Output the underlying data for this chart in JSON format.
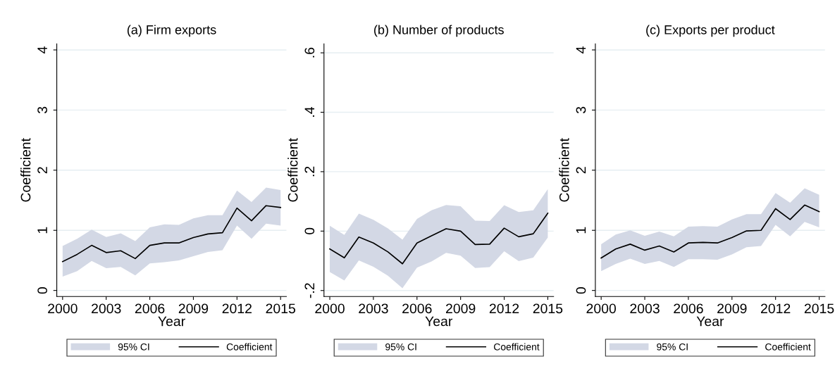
{
  "chart_data": [
    {
      "type": "line",
      "title": "(a) Firm exports",
      "xlabel": "Year",
      "ylabel": "Coefficient",
      "annotations": [
        "95% CI"
      ],
      "x": [
        2000,
        2001,
        2002,
        2003,
        2004,
        2005,
        2006,
        2007,
        2008,
        2009,
        2010,
        2011,
        2012,
        2013,
        2014,
        2015
      ],
      "series": [
        {
          "name": "Coefficient",
          "type": "line",
          "color": "#000000",
          "values": [
            0.48,
            0.6,
            0.75,
            0.63,
            0.66,
            0.53,
            0.75,
            0.79,
            0.79,
            0.88,
            0.94,
            0.96,
            1.37,
            1.16,
            1.41,
            1.38
          ],
          "lower": [
            0.23,
            0.32,
            0.49,
            0.37,
            0.39,
            0.25,
            0.45,
            0.47,
            0.5,
            0.57,
            0.64,
            0.67,
            1.08,
            0.86,
            1.11,
            1.08
          ],
          "upper": [
            0.74,
            0.86,
            1.01,
            0.89,
            0.95,
            0.82,
            1.05,
            1.1,
            1.09,
            1.2,
            1.25,
            1.25,
            1.66,
            1.47,
            1.71,
            1.67
          ]
        }
      ],
      "xlim": [
        1999.6,
        2015.4
      ],
      "xticks": [
        2000,
        2003,
        2006,
        2009,
        2012,
        2015
      ],
      "ylim": [
        -0.1,
        4.1
      ],
      "yticks": [
        0,
        1,
        2,
        3,
        4
      ],
      "grid": "y",
      "legend": "bottom",
      "line_style": "solid"
    },
    {
      "type": "line",
      "title": "(b) Number of products",
      "xlabel": "Year",
      "ylabel": "Coefficient",
      "annotations": [
        "95% CI"
      ],
      "x": [
        2000,
        2001,
        2002,
        2003,
        2004,
        2005,
        2006,
        2007,
        2008,
        2009,
        2010,
        2011,
        2012,
        2013,
        2014,
        2015
      ],
      "series": [
        {
          "name": "Coefficient",
          "type": "line",
          "color": "#000000",
          "values": [
            -0.06,
            -0.09,
            -0.02,
            -0.04,
            -0.07,
            -0.11,
            -0.04,
            -0.016,
            0.008,
            0.0,
            -0.045,
            -0.044,
            0.01,
            -0.019,
            -0.009,
            0.06
          ],
          "lower": [
            -0.138,
            -0.166,
            -0.099,
            -0.12,
            -0.15,
            -0.192,
            -0.123,
            -0.102,
            -0.073,
            -0.083,
            -0.124,
            -0.121,
            -0.068,
            -0.101,
            -0.089,
            -0.022
          ],
          "upper": [
            0.018,
            -0.013,
            0.059,
            0.038,
            0.009,
            -0.029,
            0.041,
            0.07,
            0.088,
            0.084,
            0.035,
            0.034,
            0.087,
            0.064,
            0.07,
            0.141
          ]
        }
      ],
      "xlim": [
        1999.6,
        2015.4
      ],
      "xticks": [
        2000,
        2003,
        2006,
        2009,
        2012,
        2015
      ],
      "ylim": [
        -0.22,
        0.63
      ],
      "yticks": [
        {
          "value": -0.2,
          "label": "-.2"
        },
        0,
        {
          "value": 0.2,
          "label": ".2"
        },
        {
          "value": 0.4,
          "label": ".4"
        },
        {
          "value": 0.6,
          "label": ".6"
        }
      ],
      "grid": "y",
      "legend": "bottom",
      "line_style": "solid"
    },
    {
      "type": "line",
      "title": "(c) Exports per product",
      "xlabel": "Year",
      "ylabel": "Coefficient",
      "annotations": [
        "95% CI"
      ],
      "x": [
        2000,
        2001,
        2002,
        2003,
        2004,
        2005,
        2006,
        2007,
        2008,
        2009,
        2010,
        2011,
        2012,
        2013,
        2014,
        2015
      ],
      "series": [
        {
          "name": "Coefficient",
          "type": "line",
          "color": "#000000",
          "values": [
            0.54,
            0.69,
            0.77,
            0.67,
            0.74,
            0.64,
            0.79,
            0.8,
            0.79,
            0.88,
            0.99,
            1.0,
            1.36,
            1.18,
            1.42,
            1.31
          ],
          "lower": [
            0.32,
            0.44,
            0.53,
            0.44,
            0.49,
            0.39,
            0.52,
            0.52,
            0.51,
            0.6,
            0.72,
            0.74,
            1.09,
            0.9,
            1.14,
            1.05
          ],
          "upper": [
            0.77,
            0.93,
            1.0,
            0.91,
            0.98,
            0.9,
            1.06,
            1.07,
            1.06,
            1.18,
            1.27,
            1.27,
            1.62,
            1.46,
            1.7,
            1.59
          ]
        }
      ],
      "xlim": [
        1999.6,
        2015.4
      ],
      "xticks": [
        2000,
        2003,
        2006,
        2009,
        2012,
        2015
      ],
      "ylim": [
        -0.1,
        4.1
      ],
      "yticks": [
        0,
        1,
        2,
        3,
        4
      ],
      "grid": "y",
      "legend": "bottom",
      "line_style": "solid"
    }
  ]
}
